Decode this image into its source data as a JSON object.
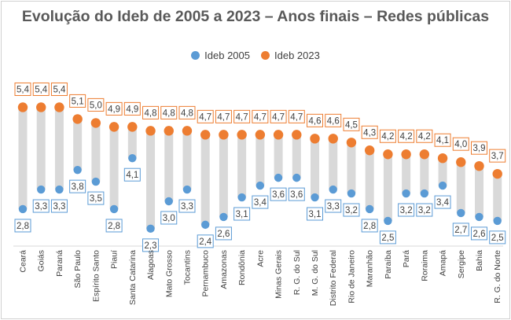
{
  "chart_data": {
    "type": "dumbbell",
    "title": "Evolução do Ideb de 2005 a 2023 – Anos finais – Redes públicas",
    "xlabel": "",
    "ylabel": "",
    "legend_position": "top",
    "series": [
      {
        "name": "Ideb 2005",
        "color": "#5b9bd5",
        "values": [
          2.8,
          3.3,
          3.3,
          3.8,
          3.5,
          2.8,
          4.1,
          2.3,
          3.0,
          3.3,
          2.4,
          2.6,
          3.1,
          3.4,
          3.6,
          3.6,
          3.1,
          3.3,
          3.2,
          2.8,
          2.5,
          3.2,
          3.2,
          3.4,
          2.7,
          2.6,
          2.5
        ],
        "labels": [
          "2,8",
          "3,3",
          "3,3",
          "3,8",
          "3,5",
          "2,8",
          "4,1",
          "2,3",
          "3,0",
          "3,3",
          "2,4",
          "2,6",
          "3,1",
          "3,4",
          "3,6",
          "3,6",
          "3,1",
          "3,3",
          "3,2",
          "2,8",
          "2,5",
          "3,2",
          "3,2",
          "3,4",
          "2,7",
          "2,6",
          "2,5"
        ]
      },
      {
        "name": "Ideb 2023",
        "color": "#ed7d31",
        "values": [
          5.4,
          5.4,
          5.4,
          5.1,
          5.0,
          4.9,
          4.9,
          4.8,
          4.8,
          4.8,
          4.7,
          4.7,
          4.7,
          4.7,
          4.7,
          4.7,
          4.6,
          4.6,
          4.5,
          4.3,
          4.2,
          4.2,
          4.2,
          4.1,
          4.0,
          3.9,
          3.7
        ],
        "labels": [
          "5,4",
          "5,4",
          "5,4",
          "5,1",
          "5,0",
          "4,9",
          "4,9",
          "4,8",
          "4,8",
          "4,8",
          "4,7",
          "4,7",
          "4,7",
          "4,7",
          "4,7",
          "4,7",
          "4,6",
          "4,6",
          "4,5",
          "4,3",
          "4,2",
          "4,2",
          "4,2",
          "4,1",
          "4,0",
          "3,9",
          "3,7"
        ]
      }
    ],
    "categories": [
      "Ceará",
      "Goiás",
      "Paraná",
      "São Paulo",
      "Espírito Santo",
      "Piauí",
      "Santa Catarina",
      "Alagoas",
      "Mato Grosso",
      "Tocantins",
      "Pernambuco",
      "Amazonas",
      "Rondônia",
      "Acre",
      "Minas Gerais",
      "R. G. do Sul",
      "M. G. do Sul",
      "Distrito Federal",
      "Rio de Janeiro",
      "Maranhão",
      "Paraíba",
      "Pará",
      "Roraima",
      "Amapá",
      "Sergipe",
      "Bahia",
      "R. G. do Norte"
    ],
    "connector_color": "#d9d9d9"
  }
}
